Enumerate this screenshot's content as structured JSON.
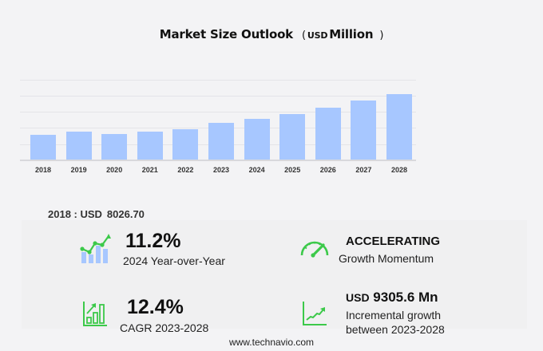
{
  "title": {
    "main": "Market Size Outlook",
    "paren_open": "(",
    "unit_small": "USD",
    "unit_big": "Million",
    "paren_close": ")"
  },
  "chart_data": {
    "type": "bar",
    "title": "Market Size Outlook (USD Million)",
    "xlabel": "",
    "ylabel": "",
    "categories": [
      "2018",
      "2019",
      "2020",
      "2021",
      "2022",
      "2023",
      "2024",
      "2025",
      "2026",
      "2027",
      "2028"
    ],
    "values": [
      8026.7,
      8850,
      8040,
      8870,
      9640,
      11713,
      13025,
      14630,
      16570,
      18750,
      21019
    ],
    "ylim": [
      0,
      26500
    ],
    "grid": true,
    "y_ticks_shown": false,
    "bar_color": "#a7c7ff",
    "legend": null
  },
  "base_year": {
    "label": "2018 : USD",
    "value": "8026.70"
  },
  "stats": {
    "yoy": {
      "value": "11.2%",
      "label": "2024 Year-over-Year",
      "icon": "growth-chart-icon"
    },
    "momentum": {
      "value": "ACCELERATING",
      "label": "Growth Momentum",
      "icon": "speedometer-icon"
    },
    "cagr": {
      "value": "12.4%",
      "label": "CAGR 2023-2028",
      "icon": "bar-growth-icon"
    },
    "incremental": {
      "value_prefix": "USD",
      "value": "9305.6 Mn",
      "label_line1": "Incremental growth",
      "label_line2": "between 2023-2028",
      "icon": "trend-line-icon"
    }
  },
  "colors": {
    "accent_green": "#3cc94a",
    "bar_blue": "#a7c7ff",
    "background": "#f3f3f5"
  },
  "footer": {
    "url_text": "www.technavio.com"
  }
}
